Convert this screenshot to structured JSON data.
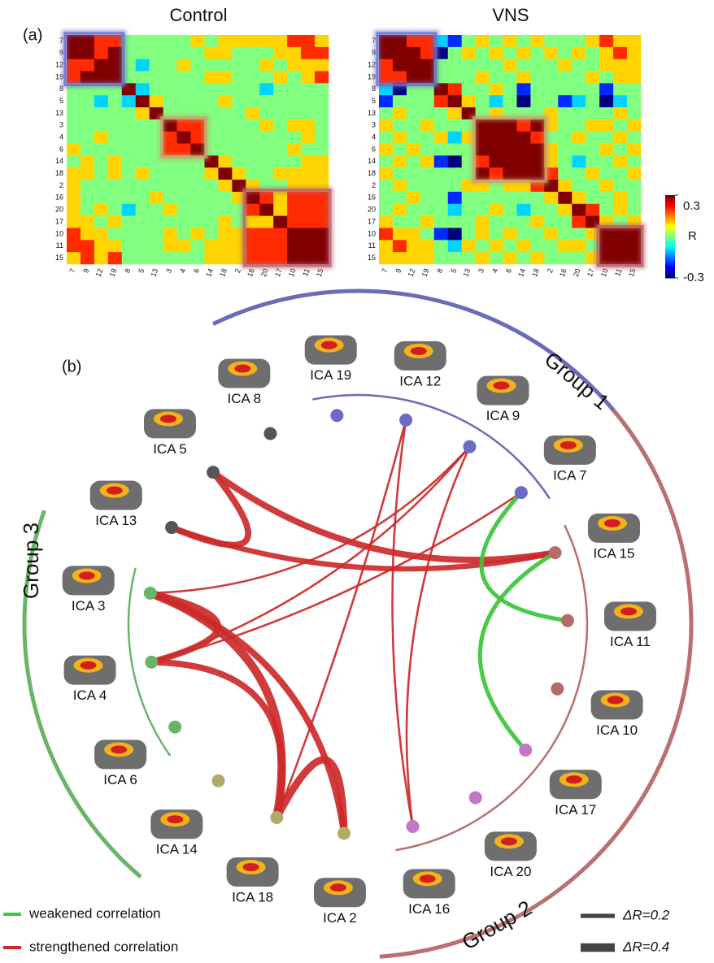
{
  "chart_data": [
    {
      "type": "heatmap",
      "panel_label": "(a)",
      "title": "Control",
      "x": [
        "7",
        "9",
        "12",
        "19",
        "8",
        "5",
        "13",
        "3",
        "4",
        "6",
        "14",
        "18",
        "2",
        "16",
        "20",
        "17",
        "10",
        "11",
        "15"
      ],
      "y": [
        "7",
        "9",
        "12",
        "19",
        "8",
        "5",
        "13",
        "3",
        "4",
        "6",
        "14",
        "18",
        "2",
        "16",
        "20",
        "17",
        "10",
        "11",
        "15"
      ],
      "values": [
        [
          0.3,
          0.3,
          0.2,
          0.2,
          0,
          0,
          0,
          0,
          0,
          0.1,
          0,
          0.1,
          0.1,
          0.1,
          0.1,
          0.1,
          0.2,
          0.2,
          0.1
        ],
        [
          0.3,
          0.3,
          0.2,
          0.3,
          0,
          0,
          0,
          0,
          0,
          0,
          0.1,
          0.1,
          0,
          0,
          0,
          0.1,
          0.1,
          0.2,
          0.2
        ],
        [
          0.2,
          0.2,
          0.3,
          0.3,
          0,
          -0.1,
          0,
          0,
          0.1,
          0,
          0,
          0,
          0,
          0,
          0.1,
          0,
          0.1,
          0.1,
          0.1
        ],
        [
          0.2,
          0.3,
          0.3,
          0.3,
          0,
          0,
          0,
          0,
          0,
          0,
          0.1,
          0.1,
          0,
          0,
          0,
          0.1,
          0,
          0.1,
          0.2
        ],
        [
          0,
          0,
          0,
          0,
          0.3,
          -0.1,
          0,
          0,
          0,
          0,
          0,
          0,
          0,
          0,
          -0.1,
          0,
          0,
          0,
          0
        ],
        [
          0,
          0,
          -0.1,
          0,
          -0.1,
          0.3,
          0.1,
          0,
          0,
          0,
          0,
          0.1,
          0,
          0,
          0,
          0,
          0,
          0,
          0
        ],
        [
          0,
          0,
          0,
          0,
          0,
          0.1,
          0.3,
          0,
          0,
          0,
          0,
          0,
          0,
          0.1,
          0,
          0,
          0,
          0,
          0
        ],
        [
          0,
          0,
          0,
          0,
          0,
          0,
          0,
          0.3,
          0.2,
          0.2,
          0,
          0,
          0,
          0,
          0.1,
          0,
          0.1,
          0.1,
          0
        ],
        [
          0,
          0,
          0.1,
          0,
          0,
          0,
          0,
          0.2,
          0.3,
          0.2,
          0,
          0,
          0,
          0,
          0,
          0,
          0,
          0.1,
          0
        ],
        [
          0.1,
          0,
          0,
          0,
          0,
          0,
          0,
          0.2,
          0.2,
          0.3,
          0,
          0,
          0,
          0,
          0,
          0,
          0.1,
          0,
          0
        ],
        [
          0,
          0.1,
          0,
          0.1,
          0,
          0,
          0,
          0,
          0,
          0,
          0.3,
          0.1,
          0,
          0,
          0,
          0,
          0,
          0.1,
          0.1
        ],
        [
          0.1,
          0.1,
          0,
          0.1,
          0,
          0.1,
          0,
          0,
          0,
          0,
          0.1,
          0.3,
          0.1,
          0,
          0,
          0.1,
          0.1,
          0.1,
          0.1
        ],
        [
          0.1,
          0,
          0,
          0,
          0,
          0,
          0,
          0,
          0,
          0,
          0,
          0.1,
          0.3,
          0.1,
          0,
          0,
          0.1,
          0.1,
          0.1
        ],
        [
          0.1,
          0,
          0,
          0,
          0,
          0,
          0.1,
          0,
          0,
          0,
          0,
          0,
          0.1,
          0.3,
          0.2,
          0.1,
          0.2,
          0.2,
          0.2
        ],
        [
          0.1,
          0,
          0.1,
          0,
          -0.1,
          0,
          0,
          0.1,
          0,
          0,
          0,
          0,
          0,
          0.2,
          0.3,
          0.1,
          0.2,
          0.2,
          0.2
        ],
        [
          0.1,
          0.1,
          0,
          0.1,
          0,
          0,
          0,
          0,
          0,
          0,
          0,
          0.1,
          0,
          0.1,
          0.1,
          0.3,
          0.2,
          0.2,
          0.2
        ],
        [
          0.2,
          0.1,
          0.1,
          0,
          0,
          0,
          0,
          0.1,
          0,
          0.1,
          0,
          0.1,
          0.1,
          0.2,
          0.2,
          0.2,
          0.3,
          0.3,
          0.3
        ],
        [
          0.2,
          0.2,
          0.1,
          0.1,
          0,
          0,
          0,
          0.1,
          0.1,
          0,
          0.1,
          0.1,
          0.1,
          0.2,
          0.2,
          0.2,
          0.3,
          0.3,
          0.3
        ],
        [
          0.1,
          0.2,
          0.1,
          0.2,
          0,
          0,
          0,
          0,
          0,
          0,
          0.1,
          0.1,
          0.1,
          0.2,
          0.2,
          0.2,
          0.3,
          0.3,
          0.3
        ]
      ],
      "clim": [
        -0.3,
        0.3
      ],
      "highlights": [
        {
          "from": "7",
          "to": "19",
          "color": "#6b6bc8"
        },
        {
          "from": "3",
          "to": "6",
          "color": "#c8a070"
        },
        {
          "from": "16",
          "to": "15",
          "color": "#b86070"
        }
      ]
    },
    {
      "type": "heatmap",
      "title": "VNS",
      "x": [
        "7",
        "9",
        "12",
        "19",
        "8",
        "5",
        "13",
        "3",
        "4",
        "6",
        "14",
        "18",
        "2",
        "16",
        "20",
        "17",
        "10",
        "11",
        "15"
      ],
      "y": [
        "7",
        "9",
        "12",
        "19",
        "8",
        "5",
        "13",
        "3",
        "4",
        "6",
        "14",
        "18",
        "2",
        "16",
        "20",
        "17",
        "10",
        "11",
        "15"
      ],
      "values": [
        [
          0.3,
          0.3,
          0.2,
          0.2,
          -0.1,
          -0.2,
          0,
          0.1,
          0,
          0.1,
          0,
          0.1,
          0,
          0,
          0,
          0.1,
          0.2,
          0.1,
          0.1
        ],
        [
          0.3,
          0.3,
          0.3,
          0.2,
          -0.3,
          0,
          0.1,
          0,
          0.1,
          0,
          0.1,
          0,
          0.1,
          0,
          0.1,
          0,
          0.1,
          0.2,
          0.1
        ],
        [
          0.2,
          0.3,
          0.3,
          0.3,
          0,
          0,
          0,
          0,
          0,
          0.1,
          0,
          0,
          0,
          0.1,
          0,
          0,
          0.1,
          0.1,
          0.1
        ],
        [
          0.2,
          0.2,
          0.3,
          0.3,
          0,
          0,
          0,
          0.1,
          0,
          0,
          0.1,
          0,
          0,
          0,
          0,
          0.1,
          0,
          0.1,
          0.1
        ],
        [
          -0.1,
          -0.3,
          0,
          0,
          0.3,
          0.2,
          0,
          0,
          0.1,
          0,
          -0.2,
          0,
          0,
          0,
          0,
          0,
          -0.2,
          0,
          0
        ],
        [
          -0.2,
          0,
          0,
          0,
          0.2,
          0.3,
          0.1,
          0,
          -0.1,
          0,
          -0.3,
          0,
          0,
          -0.2,
          -0.1,
          0,
          -0.3,
          -0.1,
          0
        ],
        [
          0,
          0.1,
          0,
          0,
          0,
          0.1,
          0.3,
          0,
          0.1,
          0,
          0,
          0,
          0.1,
          0,
          0,
          0,
          0,
          0.1,
          0
        ],
        [
          0.1,
          0,
          0,
          0.1,
          0,
          0,
          0,
          0.3,
          0.3,
          0.3,
          0.2,
          0.3,
          0.1,
          0,
          0,
          0.1,
          0.1,
          0,
          0.1
        ],
        [
          0,
          0.1,
          0,
          0,
          0.1,
          -0.1,
          0.1,
          0.3,
          0.3,
          0.3,
          0.3,
          0.2,
          0,
          0,
          0.1,
          0,
          0,
          0.1,
          0
        ],
        [
          0.1,
          0,
          0.1,
          0,
          0,
          0,
          0,
          0.3,
          0.3,
          0.3,
          0.3,
          0.3,
          0.1,
          0,
          0,
          0,
          0.1,
          0,
          0.1
        ],
        [
          0,
          0.1,
          0,
          0.1,
          -0.2,
          -0.3,
          0,
          0.2,
          0.3,
          0.3,
          0.3,
          0.3,
          0.1,
          0,
          -0.1,
          0,
          0,
          0.1,
          0
        ],
        [
          0.1,
          0,
          0,
          0,
          0,
          0,
          0,
          0.3,
          0.2,
          0.3,
          0.3,
          0.3,
          0.2,
          0,
          0,
          0.1,
          0,
          0,
          0.1
        ],
        [
          0,
          0.1,
          0,
          0,
          0,
          0,
          0.1,
          0.1,
          0,
          0.1,
          0.1,
          0.2,
          0.3,
          0.1,
          0,
          0,
          0.1,
          0,
          0
        ],
        [
          0,
          0,
          0.1,
          0,
          0,
          -0.2,
          0,
          0,
          0,
          0,
          0,
          0,
          0.1,
          0.3,
          0.1,
          0,
          0,
          0.1,
          0
        ],
        [
          0,
          0.1,
          0,
          0,
          0,
          -0.1,
          0,
          0,
          0.1,
          0,
          -0.1,
          0,
          0,
          0.1,
          0.3,
          0.2,
          0,
          0.1,
          0
        ],
        [
          0.1,
          0,
          0,
          0.1,
          0,
          0,
          0,
          0.1,
          0,
          0,
          0,
          0.1,
          0,
          0,
          0.2,
          0.3,
          0.1,
          0,
          0.1
        ],
        [
          0.2,
          0.1,
          0.1,
          0,
          -0.2,
          -0.3,
          0,
          0.1,
          0,
          0.1,
          0,
          0,
          0.1,
          0,
          0,
          0.1,
          0.3,
          0.3,
          0.3
        ],
        [
          0.1,
          0.2,
          0.1,
          0.1,
          0,
          -0.1,
          0.1,
          0,
          0.1,
          0,
          0.1,
          0,
          0,
          0.1,
          0.1,
          0,
          0.3,
          0.3,
          0.3
        ],
        [
          0.1,
          0.1,
          0.1,
          0.1,
          0,
          0,
          0,
          0.1,
          0,
          0.1,
          0,
          0.1,
          0,
          0,
          0,
          0.1,
          0.3,
          0.3,
          0.3
        ]
      ],
      "clim": [
        -0.3,
        0.3
      ],
      "colorbar": {
        "label": "R",
        "ticks": [
          0.3,
          -0.3
        ]
      },
      "highlights": [
        {
          "from": "7",
          "to": "19",
          "color": "#6b6bc8"
        },
        {
          "from": "3",
          "to": "18",
          "color": "#c8a070"
        },
        {
          "from": "10",
          "to": "15",
          "color": "#b86070"
        }
      ]
    },
    {
      "type": "network",
      "panel_label": "(b)",
      "nodes": [
        {
          "label": "ICA 19",
          "color": "#6b6bc4"
        },
        {
          "label": "ICA 12",
          "color": "#6b6bc4"
        },
        {
          "label": "ICA 9",
          "color": "#6b6bc4"
        },
        {
          "label": "ICA 7",
          "color": "#6b6bc4"
        },
        {
          "label": "ICA 15",
          "color": "#b86a6a"
        },
        {
          "label": "ICA 11",
          "color": "#b86a6a"
        },
        {
          "label": "ICA 10",
          "color": "#b86a6a"
        },
        {
          "label": "ICA 17",
          "color": "#c077c8"
        },
        {
          "label": "ICA 20",
          "color": "#c077c8"
        },
        {
          "label": "ICA 16",
          "color": "#c077c8"
        },
        {
          "label": "ICA 2",
          "color": "#b0ac68"
        },
        {
          "label": "ICA 18",
          "color": "#b0ac68"
        },
        {
          "label": "ICA 14",
          "color": "#b0ac68"
        },
        {
          "label": "ICA 6",
          "color": "#6ab46a"
        },
        {
          "label": "ICA 4",
          "color": "#6ab46a"
        },
        {
          "label": "ICA 3",
          "color": "#6ab46a"
        },
        {
          "label": "ICA 13",
          "color": "#555555"
        },
        {
          "label": "ICA 5",
          "color": "#555555"
        },
        {
          "label": "ICA 8",
          "color": "#555555"
        }
      ],
      "edges": [
        {
          "source": "ICA 5",
          "target": "ICA 15",
          "delta_r": 0.3,
          "kind": "strengthened"
        },
        {
          "source": "ICA 13",
          "target": "ICA 5",
          "delta_r": 0.3,
          "kind": "strengthened"
        },
        {
          "source": "ICA 13",
          "target": "ICA 15",
          "delta_r": 0.25,
          "kind": "strengthened"
        },
        {
          "source": "ICA 3",
          "target": "ICA 18",
          "delta_r": 0.4,
          "kind": "strengthened"
        },
        {
          "source": "ICA 3",
          "target": "ICA 4",
          "delta_r": 0.3,
          "kind": "strengthened"
        },
        {
          "source": "ICA 4",
          "target": "ICA 18",
          "delta_r": 0.3,
          "kind": "strengthened"
        },
        {
          "source": "ICA 18",
          "target": "ICA 2",
          "delta_r": 0.35,
          "kind": "strengthened"
        },
        {
          "source": "ICA 3",
          "target": "ICA 2",
          "delta_r": 0.3,
          "kind": "strengthened"
        },
        {
          "source": "ICA 3",
          "target": "ICA 9",
          "delta_r": 0.1,
          "kind": "strengthened"
        },
        {
          "source": "ICA 4",
          "target": "ICA 7",
          "delta_r": 0.1,
          "kind": "strengthened"
        },
        {
          "source": "ICA 4",
          "target": "ICA 9",
          "delta_r": 0.1,
          "kind": "strengthened"
        },
        {
          "source": "ICA 18",
          "target": "ICA 12",
          "delta_r": 0.1,
          "kind": "strengthened"
        },
        {
          "source": "ICA 16",
          "target": "ICA 12",
          "delta_r": 0.1,
          "kind": "strengthened"
        },
        {
          "source": "ICA 16",
          "target": "ICA 9",
          "delta_r": 0.1,
          "kind": "strengthened"
        },
        {
          "source": "ICA 7",
          "target": "ICA 11",
          "delta_r": 0.2,
          "kind": "weakened"
        },
        {
          "source": "ICA 17",
          "target": "ICA 15",
          "delta_r": 0.2,
          "kind": "weakened"
        }
      ],
      "groups": [
        {
          "label": "Group 1",
          "color": "#6b6bb8",
          "members": [
            "ICA 19",
            "ICA 7"
          ]
        },
        {
          "label": "Group 2",
          "color": "#b87070",
          "members": [
            "ICA 15",
            "ICA 16"
          ]
        },
        {
          "label": "Group 3",
          "color": "#6ab46a",
          "members": [
            "ICA 3",
            "ICA 6"
          ]
        }
      ],
      "legend": [
        {
          "kind": "weakened",
          "label": "weakened correlation",
          "color": "#3cc43c"
        },
        {
          "kind": "strengthened",
          "label": "strengthened correlation",
          "color": "#cc2a2a"
        }
      ],
      "width_legend": [
        {
          "label": "ΔR=0.2",
          "value": 0.2
        },
        {
          "label": "ΔR=0.4",
          "value": 0.4
        }
      ]
    }
  ]
}
